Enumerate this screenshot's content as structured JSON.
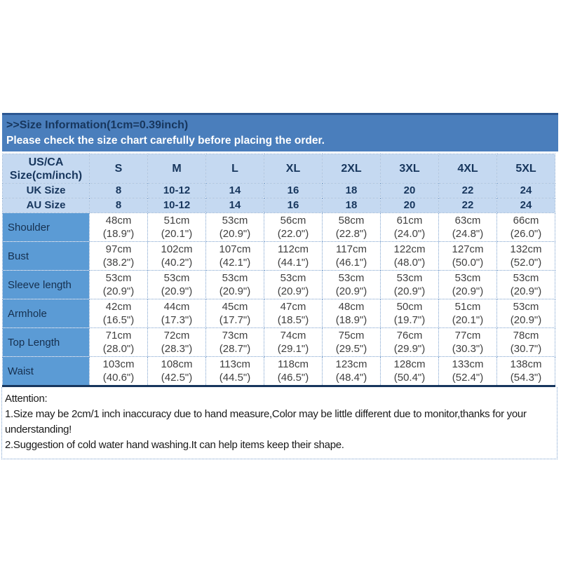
{
  "header": {
    "title": ">>Size Information(1cm=0.39inch)",
    "subtitle": "Please check the size chart carefully before placing the order."
  },
  "table": {
    "corner_header": "US/CA\nSize(cm/inch)",
    "size_columns": [
      "S",
      "M",
      "L",
      "XL",
      "2XL",
      "3XL",
      "4XL",
      "5XL"
    ],
    "conversion_rows": [
      {
        "label": "UK Size",
        "values": [
          "8",
          "10-12",
          "14",
          "16",
          "18",
          "20",
          "22",
          "24"
        ]
      },
      {
        "label": "AU Size",
        "values": [
          "8",
          "10-12",
          "14",
          "16",
          "18",
          "20",
          "22",
          "24"
        ]
      }
    ],
    "measurement_rows": [
      {
        "label": "Shoulder",
        "cells": [
          "48cm\n(18.9\")",
          "51cm\n(20.1\")",
          "53cm\n(20.9\")",
          "56cm\n(22.0\")",
          "58cm\n(22.8\")",
          "61cm\n(24.0\")",
          "63cm\n(24.8\")",
          "66cm\n(26.0\")"
        ]
      },
      {
        "label": "Bust",
        "cells": [
          "97cm\n(38.2\")",
          "102cm\n(40.2\")",
          "107cm\n(42.1\")",
          "112cm\n(44.1\")",
          "117cm\n(46.1\")",
          "122cm\n(48.0\")",
          "127cm\n(50.0\")",
          "132cm\n(52.0\")"
        ]
      },
      {
        "label": "Sleeve length",
        "cells": [
          "53cm\n(20.9\")",
          "53cm\n(20.9\")",
          "53cm\n(20.9\")",
          "53cm\n(20.9\")",
          "53cm\n(20.9\")",
          "53cm\n(20.9\")",
          "53cm\n(20.9\")",
          "53cm\n(20.9\")"
        ]
      },
      {
        "label": "Armhole",
        "cells": [
          "42cm\n(16.5\")",
          "44cm\n(17.3\")",
          "45cm\n(17.7\")",
          "47cm\n(18.5\")",
          "48cm\n(18.9\")",
          "50cm\n(19.7\")",
          "51cm\n(20.1\")",
          "53cm\n(20.9\")"
        ]
      },
      {
        "label": "Top Length",
        "cells": [
          "71cm\n(28.0\")",
          "72cm\n(28.3\")",
          "73cm\n(28.7\")",
          "74cm\n(29.1\")",
          "75cm\n(29.5\")",
          "76cm\n(29.9\")",
          "77cm\n(30.3\")",
          "78cm\n(30.7\")"
        ]
      },
      {
        "label": "Waist",
        "cells": [
          "103cm\n(40.6\")",
          "108cm\n(42.5\")",
          "113cm\n(44.5\")",
          "118cm\n(46.5\")",
          "123cm\n(48.4\")",
          "128cm\n(50.4\")",
          "133cm\n(52.4\")",
          "138cm\n(54.3\")"
        ]
      }
    ]
  },
  "attention": {
    "title": "Attention:",
    "items": [
      "1.Size may be 2cm/1 inch inaccuracy due to hand measure,Color may be little different due to monitor,thanks for your understanding!",
      "2.Suggestion of cold water hand washing.It can help items keep their shape."
    ]
  },
  "colors": {
    "banner_blue": "#4a7ebc",
    "banner_top_border": "#2c5791",
    "header_light_blue": "#c5d9f1",
    "label_column_blue": "#5b9bd5",
    "grid_dotted_blue": "#7ba0cd",
    "dark_navy_text": "#17365d",
    "data_text": "#404040",
    "table_bottom_border": "#17365d"
  }
}
